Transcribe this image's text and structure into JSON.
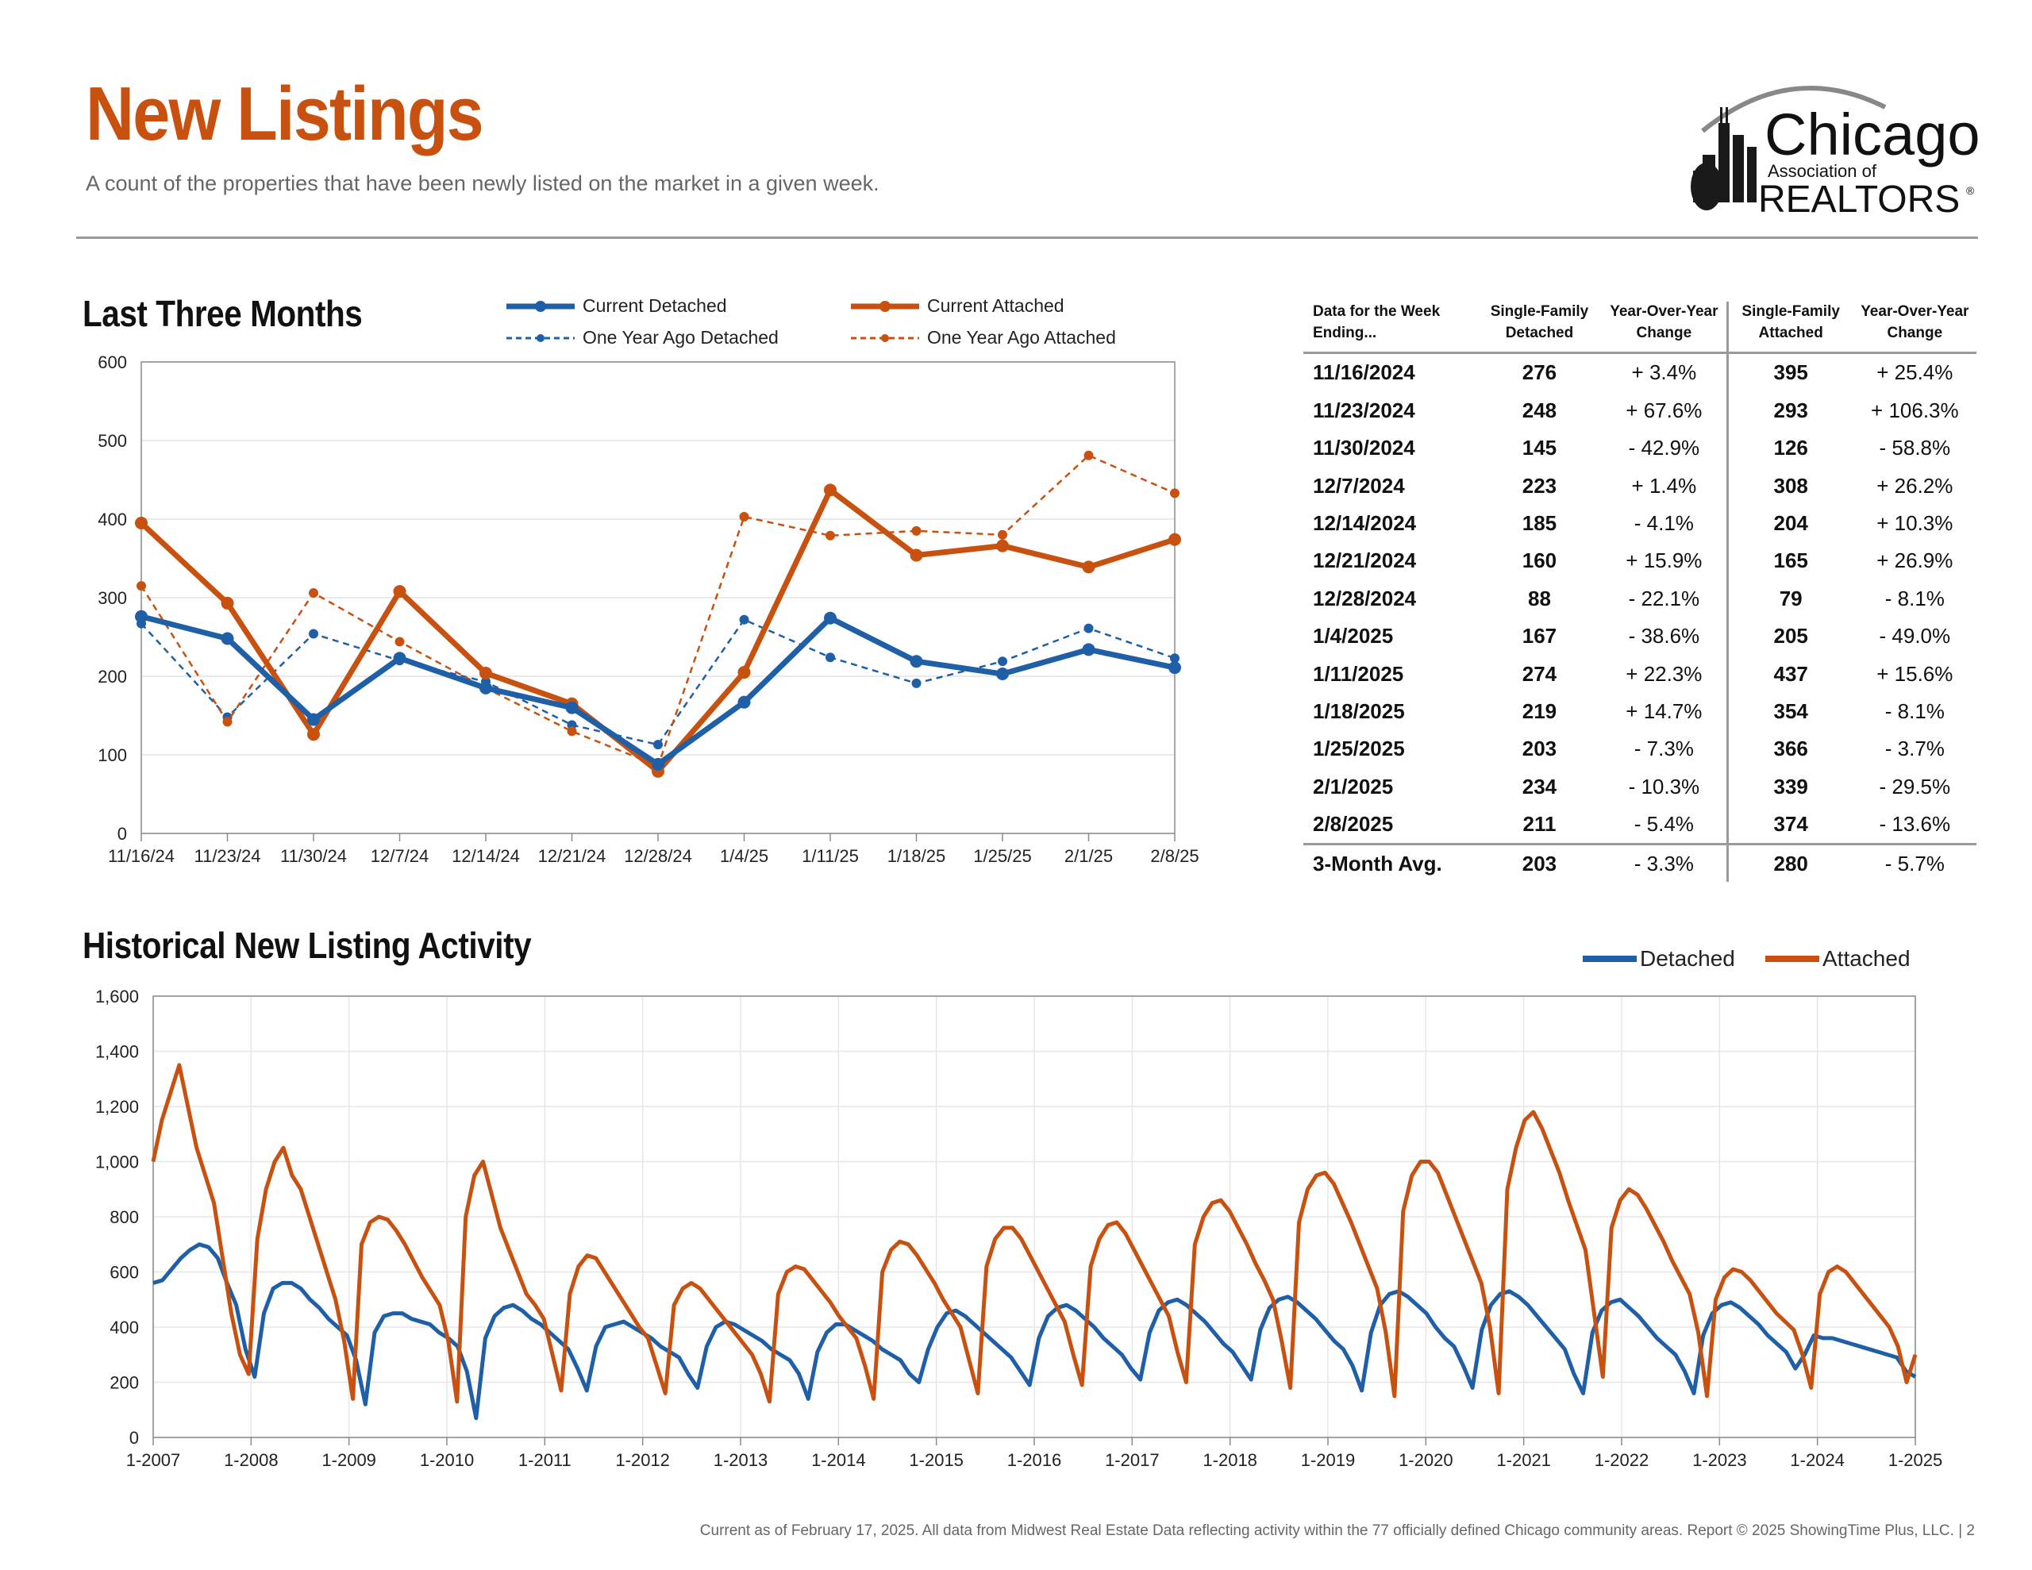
{
  "header": {
    "title": "New Listings",
    "subtitle": "A count of the properties that have been newly listed on the market in a given week.",
    "logo": {
      "name": "Chicago",
      "line2": "Association of",
      "line3": "REALTORS",
      "mark": "®"
    }
  },
  "colors": {
    "detached": "#1f5fa8",
    "attached": "#c8510f",
    "title": "#c8510f",
    "rule": "#9a9a9a"
  },
  "sections": {
    "three_months": "Last Three Months",
    "historical": "Historical New Listing Activity"
  },
  "legend_three": {
    "current_detached": "Current Detached",
    "current_attached": "Current Attached",
    "year_ago_detached": "One Year Ago Detached",
    "year_ago_attached": "One Year Ago Attached"
  },
  "legend_hist": {
    "detached": "Detached",
    "attached": "Attached"
  },
  "table": {
    "headers": {
      "week": "Data for the Week Ending...",
      "det": "Single-Family Detached",
      "det_chg": "Year-Over-Year Change",
      "att": "Single-Family Attached",
      "att_chg": "Year-Over-Year Change"
    },
    "rows": [
      {
        "week": "11/16/2024",
        "det": "276",
        "det_chg": "+ 3.4%",
        "att": "395",
        "att_chg": "+ 25.4%"
      },
      {
        "week": "11/23/2024",
        "det": "248",
        "det_chg": "+ 67.6%",
        "att": "293",
        "att_chg": "+ 106.3%"
      },
      {
        "week": "11/30/2024",
        "det": "145",
        "det_chg": "- 42.9%",
        "att": "126",
        "att_chg": "- 58.8%"
      },
      {
        "week": "12/7/2024",
        "det": "223",
        "det_chg": "+ 1.4%",
        "att": "308",
        "att_chg": "+ 26.2%"
      },
      {
        "week": "12/14/2024",
        "det": "185",
        "det_chg": "- 4.1%",
        "att": "204",
        "att_chg": "+ 10.3%"
      },
      {
        "week": "12/21/2024",
        "det": "160",
        "det_chg": "+ 15.9%",
        "att": "165",
        "att_chg": "+ 26.9%"
      },
      {
        "week": "12/28/2024",
        "det": "88",
        "det_chg": "- 22.1%",
        "att": "79",
        "att_chg": "- 8.1%"
      },
      {
        "week": "1/4/2025",
        "det": "167",
        "det_chg": "- 38.6%",
        "att": "205",
        "att_chg": "- 49.0%"
      },
      {
        "week": "1/11/2025",
        "det": "274",
        "det_chg": "+ 22.3%",
        "att": "437",
        "att_chg": "+ 15.6%"
      },
      {
        "week": "1/18/2025",
        "det": "219",
        "det_chg": "+ 14.7%",
        "att": "354",
        "att_chg": "- 8.1%"
      },
      {
        "week": "1/25/2025",
        "det": "203",
        "det_chg": "- 7.3%",
        "att": "366",
        "att_chg": "- 3.7%"
      },
      {
        "week": "2/1/2025",
        "det": "234",
        "det_chg": "- 10.3%",
        "att": "339",
        "att_chg": "- 29.5%"
      },
      {
        "week": "2/8/2025",
        "det": "211",
        "det_chg": "- 5.4%",
        "att": "374",
        "att_chg": "- 13.6%"
      }
    ],
    "avg": {
      "week": "3-Month Avg.",
      "det": "203",
      "det_chg": "- 3.3%",
      "att": "280",
      "att_chg": "- 5.7%"
    }
  },
  "footer": "Current as of February 17, 2025.  All data from Midwest Real Estate Data reflecting activity within the 77 officially defined Chicago community areas. Report © 2025 ShowingTime Plus, LLC.  |  2",
  "chart_data": [
    {
      "type": "line",
      "title": "Last Three Months",
      "categories": [
        "11/16/24",
        "11/23/24",
        "11/30/24",
        "12/7/24",
        "12/14/24",
        "12/21/24",
        "12/28/24",
        "1/4/25",
        "1/11/25",
        "1/18/25",
        "1/25/25",
        "2/1/25",
        "2/8/25"
      ],
      "ylim": [
        0,
        600
      ],
      "yticks": [
        0,
        100,
        200,
        300,
        400,
        500,
        600
      ],
      "grid": true,
      "series": [
        {
          "name": "Current Detached",
          "style": "solid",
          "color": "#1f5fa8",
          "values": [
            276,
            248,
            145,
            223,
            185,
            160,
            88,
            167,
            274,
            219,
            203,
            234,
            211
          ]
        },
        {
          "name": "Current Attached",
          "style": "solid",
          "color": "#c8510f",
          "values": [
            395,
            293,
            126,
            308,
            204,
            165,
            79,
            205,
            437,
            354,
            366,
            339,
            374
          ]
        },
        {
          "name": "One Year Ago Detached",
          "style": "dashed",
          "color": "#1f5fa8",
          "values": [
            267,
            148,
            254,
            220,
            193,
            138,
            113,
            272,
            224,
            191,
            219,
            261,
            223
          ]
        },
        {
          "name": "One Year Ago Attached",
          "style": "dashed",
          "color": "#c8510f",
          "values": [
            315,
            142,
            306,
            244,
            185,
            130,
            86,
            403,
            379,
            385,
            380,
            481,
            433
          ]
        }
      ]
    },
    {
      "type": "line",
      "title": "Historical New Listing Activity",
      "xticks": [
        "1-2007",
        "1-2008",
        "1-2009",
        "1-2010",
        "1-2011",
        "1-2012",
        "1-2013",
        "1-2014",
        "1-2015",
        "1-2016",
        "1-2017",
        "1-2018",
        "1-2019",
        "1-2020",
        "1-2021",
        "1-2022",
        "1-2023",
        "1-2024",
        "1-2025"
      ],
      "ylim": [
        0,
        1600
      ],
      "yticks": [
        "0",
        "200",
        "400",
        "600",
        "800",
        "1,000",
        "1,200",
        "1,400",
        "1,600"
      ],
      "grid": true,
      "legend": "top-right",
      "series": [
        {
          "name": "Detached",
          "color": "#1f5fa8",
          "values": [
            560,
            570,
            610,
            650,
            680,
            700,
            690,
            650,
            560,
            480,
            320,
            220,
            450,
            540,
            560,
            560,
            540,
            500,
            470,
            430,
            400,
            370,
            280,
            120,
            380,
            440,
            450,
            450,
            430,
            420,
            410,
            380,
            360,
            330,
            240,
            70,
            360,
            440,
            470,
            480,
            460,
            430,
            410,
            380,
            350,
            320,
            250,
            170,
            330,
            400,
            410,
            420,
            400,
            380,
            360,
            330,
            310,
            290,
            230,
            180,
            330,
            400,
            420,
            410,
            390,
            370,
            350,
            320,
            300,
            280,
            230,
            140,
            310,
            380,
            410,
            410,
            390,
            370,
            350,
            320,
            300,
            280,
            230,
            200,
            320,
            400,
            450,
            460,
            440,
            410,
            380,
            350,
            320,
            290,
            240,
            190,
            360,
            440,
            470,
            480,
            460,
            430,
            400,
            360,
            330,
            300,
            250,
            210,
            380,
            460,
            490,
            500,
            480,
            450,
            420,
            380,
            340,
            310,
            260,
            210,
            390,
            470,
            500,
            510,
            490,
            460,
            430,
            390,
            350,
            320,
            260,
            170,
            380,
            480,
            520,
            530,
            510,
            480,
            450,
            400,
            360,
            330,
            260,
            180,
            390,
            480,
            520,
            530,
            510,
            480,
            440,
            400,
            360,
            320,
            230,
            160,
            380,
            460,
            490,
            500,
            470,
            440,
            400,
            360,
            330,
            300,
            240,
            160,
            370,
            450,
            480,
            490,
            470,
            440,
            410,
            370,
            340,
            310,
            250,
            300,
            370,
            360,
            360,
            350,
            340,
            330,
            320,
            310,
            300,
            290,
            240,
            220
          ]
        },
        {
          "name": "Attached",
          "color": "#c8510f",
          "values": [
            1000,
            1150,
            1250,
            1350,
            1200,
            1050,
            950,
            850,
            650,
            450,
            300,
            230,
            720,
            900,
            1000,
            1050,
            950,
            900,
            800,
            700,
            600,
            500,
            350,
            140,
            700,
            780,
            800,
            790,
            750,
            700,
            640,
            580,
            530,
            480,
            350,
            130,
            800,
            950,
            1000,
            880,
            760,
            680,
            600,
            520,
            480,
            430,
            300,
            170,
            520,
            620,
            660,
            650,
            600,
            550,
            500,
            450,
            400,
            360,
            260,
            160,
            480,
            540,
            560,
            540,
            500,
            460,
            420,
            380,
            340,
            300,
            230,
            130,
            520,
            600,
            620,
            610,
            570,
            530,
            490,
            440,
            400,
            360,
            260,
            140,
            600,
            680,
            710,
            700,
            660,
            610,
            560,
            500,
            450,
            400,
            280,
            160,
            620,
            720,
            760,
            760,
            720,
            660,
            600,
            540,
            480,
            420,
            300,
            190,
            620,
            720,
            770,
            780,
            740,
            680,
            620,
            560,
            500,
            440,
            310,
            200,
            700,
            800,
            850,
            860,
            820,
            760,
            700,
            630,
            570,
            500,
            350,
            180,
            780,
            900,
            950,
            960,
            920,
            850,
            780,
            700,
            620,
            540,
            380,
            150,
            820,
            950,
            1000,
            1000,
            960,
            880,
            800,
            720,
            640,
            560,
            400,
            160,
            900,
            1050,
            1150,
            1180,
            1120,
            1040,
            960,
            860,
            770,
            680,
            450,
            220,
            760,
            860,
            900,
            880,
            830,
            770,
            710,
            640,
            580,
            520,
            380,
            150,
            500,
            580,
            610,
            600,
            570,
            530,
            490,
            450,
            420,
            390,
            300,
            180,
            520,
            600,
            620,
            600,
            560,
            520,
            480,
            440,
            400,
            330,
            200,
            300
          ]
        }
      ]
    }
  ]
}
